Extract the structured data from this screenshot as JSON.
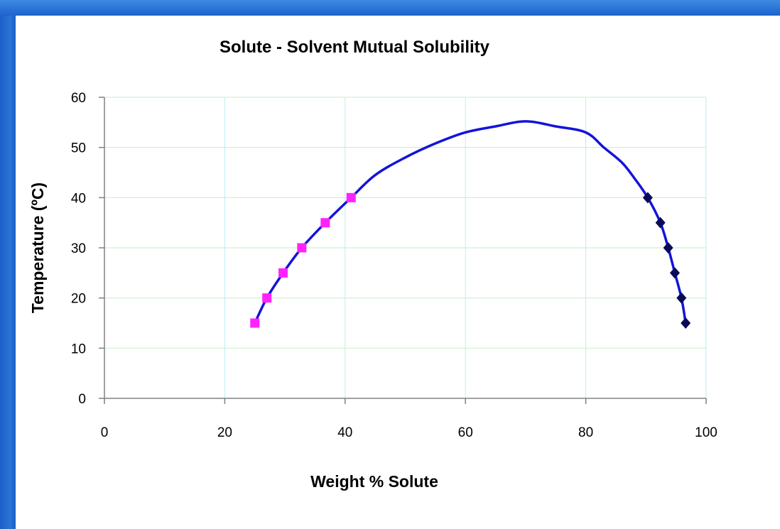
{
  "chart_data": {
    "type": "scatter",
    "title": "Solute - Solvent Mutual Solubility",
    "xlabel": "Weight % Solute",
    "ylabel": "Temperature (ºC)",
    "xlim": [
      0,
      100
    ],
    "ylim": [
      0,
      60
    ],
    "xticks": [
      0,
      20,
      40,
      60,
      80,
      100
    ],
    "yticks": [
      0,
      10,
      20,
      30,
      40,
      50,
      60
    ],
    "grid": true,
    "legend": "none",
    "curve": {
      "color": "#1414d8",
      "x": [
        25,
        27,
        29.7,
        32.8,
        36.7,
        41,
        45,
        50,
        55,
        60,
        65,
        70,
        75,
        80,
        83,
        86,
        88,
        90.3,
        92.4,
        93.7,
        94.8,
        95.9,
        96.6
      ],
      "y": [
        15,
        20,
        25,
        30,
        35,
        40,
        44.5,
        48,
        50.8,
        53,
        54.2,
        55.2,
        54.2,
        53,
        50,
        47,
        44,
        40,
        35,
        30,
        25,
        20,
        15
      ]
    },
    "series": [
      {
        "marker": "square",
        "color": "#ff22ff",
        "x": [
          25,
          27,
          29.7,
          32.8,
          36.7,
          41
        ],
        "y": [
          15,
          20,
          25,
          30,
          35,
          40
        ]
      },
      {
        "marker": "diamond",
        "color": "#0a0a5a",
        "x": [
          90.3,
          92.4,
          93.7,
          94.8,
          95.9,
          96.6
        ],
        "y": [
          40,
          35,
          30,
          25,
          20,
          15
        ]
      }
    ]
  }
}
